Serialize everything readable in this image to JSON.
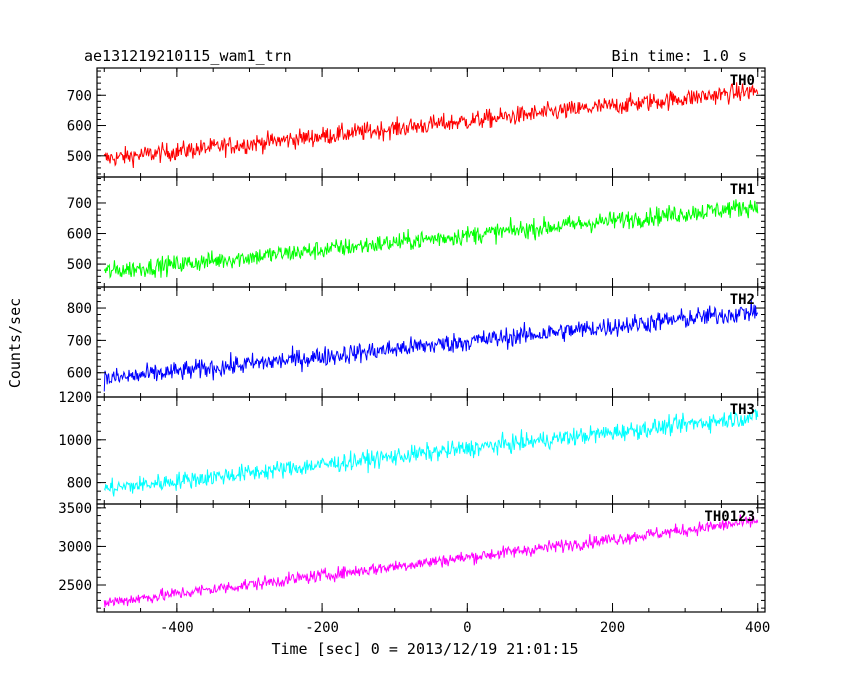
{
  "header": {
    "title": "ae131219210115_wam1_trn",
    "bin_time": "Bin time: 1.0 s"
  },
  "chart_data": {
    "type": "line",
    "title": "ae131219210115_wam1_trn",
    "subtitle": "Bin time: 1.0 s",
    "xlabel": "Time [sec] 0 = 2013/12/19 21:01:15",
    "ylabel": "Counts/sec",
    "xlim": [
      -510,
      410
    ],
    "xticks": [
      -400,
      -200,
      0,
      200,
      400
    ],
    "grid": false,
    "panels": [
      {
        "name": "TH0",
        "color": "#ff0000",
        "ylim": [
          430,
          790
        ],
        "yticks": [
          500,
          600,
          700
        ],
        "x": [
          -500,
          400
        ],
        "trend": [
          490,
          715
        ],
        "noise": 22,
        "points": 900
      },
      {
        "name": "TH1",
        "color": "#00ff00",
        "ylim": [
          425,
          785
        ],
        "yticks": [
          500,
          600,
          700
        ],
        "x": [
          -500,
          400
        ],
        "trend": [
          475,
          690
        ],
        "noise": 22,
        "points": 900
      },
      {
        "name": "TH2",
        "color": "#0000ff",
        "ylim": [
          525,
          865
        ],
        "yticks": [
          600,
          700,
          800
        ],
        "x": [
          -500,
          400
        ],
        "trend": [
          580,
          790
        ],
        "noise": 22,
        "points": 900
      },
      {
        "name": "TH3",
        "color": "#00ffff",
        "ylim": [
          700,
          1200
        ],
        "yticks": [
          800,
          1000,
          1200
        ],
        "x": [
          -500,
          400
        ],
        "trend": [
          770,
          1110
        ],
        "noise": 30,
        "points": 900
      },
      {
        "name": "TH0123",
        "color": "#ff00ff",
        "ylim": [
          2150,
          3550
        ],
        "yticks": [
          2500,
          3000,
          3500
        ],
        "x": [
          -500,
          400
        ],
        "trend": [
          2270,
          3330
        ],
        "noise": 60,
        "points": 900
      }
    ]
  }
}
